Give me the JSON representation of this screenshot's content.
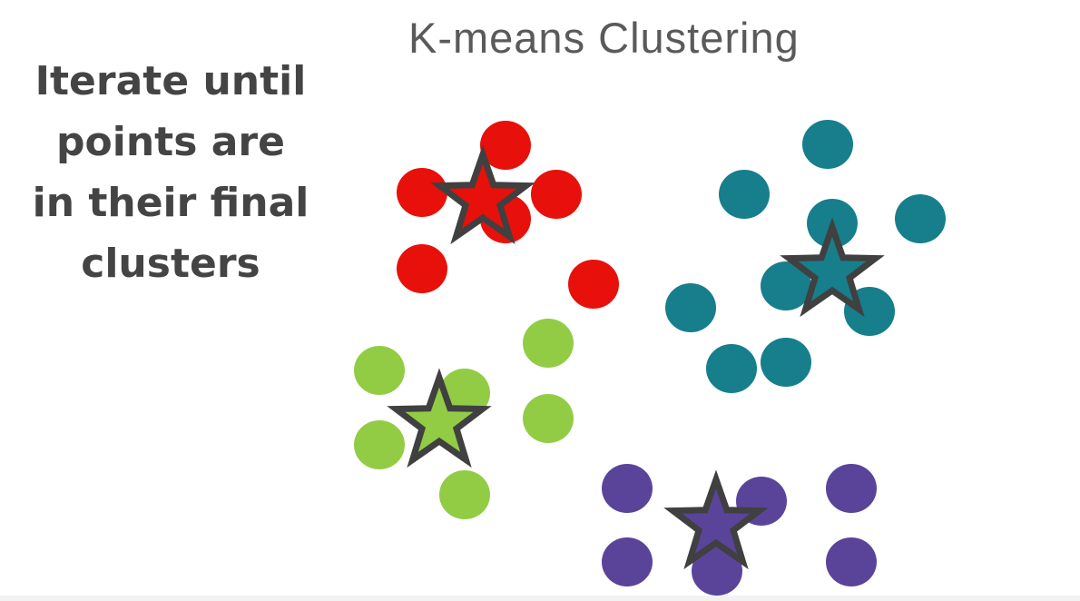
{
  "title": "K-means Clustering",
  "caption_lines": [
    "Iterate until",
    "points are",
    "in their final",
    "clusters"
  ],
  "colors": {
    "text_dark": "#444444",
    "title": "#5a5a5a",
    "star_outline": "#404040"
  },
  "clusters": [
    {
      "id": "red",
      "color": "#e8100b",
      "points": [
        [
          557,
          160
        ],
        [
          465,
          212
        ],
        [
          613,
          214
        ],
        [
          557,
          241
        ],
        [
          465,
          296
        ],
        [
          654,
          313
        ]
      ],
      "centroid": [
        532,
        220
      ]
    },
    {
      "id": "teal",
      "color": "#177e8c",
      "points": [
        [
          912,
          159
        ],
        [
          820,
          214
        ],
        [
          1014,
          241
        ],
        [
          917,
          246
        ],
        [
          866,
          315
        ],
        [
          761,
          339
        ],
        [
          958,
          343
        ],
        [
          866,
          399
        ],
        [
          806,
          406
        ]
      ],
      "centroid": [
        917,
        300
      ]
    },
    {
      "id": "green",
      "color": "#92cc45",
      "points": [
        [
          604,
          378
        ],
        [
          418,
          408
        ],
        [
          512,
          433
        ],
        [
          604,
          461
        ],
        [
          418,
          490
        ],
        [
          512,
          545
        ]
      ],
      "centroid": [
        484,
        466
      ]
    },
    {
      "id": "purple",
      "color": "#5a449a",
      "points": [
        [
          691,
          538
        ],
        [
          839,
          552
        ],
        [
          938,
          538
        ],
        [
          691,
          619
        ],
        [
          790,
          629
        ],
        [
          938,
          619
        ]
      ],
      "centroid": [
        789,
        578
      ]
    }
  ]
}
